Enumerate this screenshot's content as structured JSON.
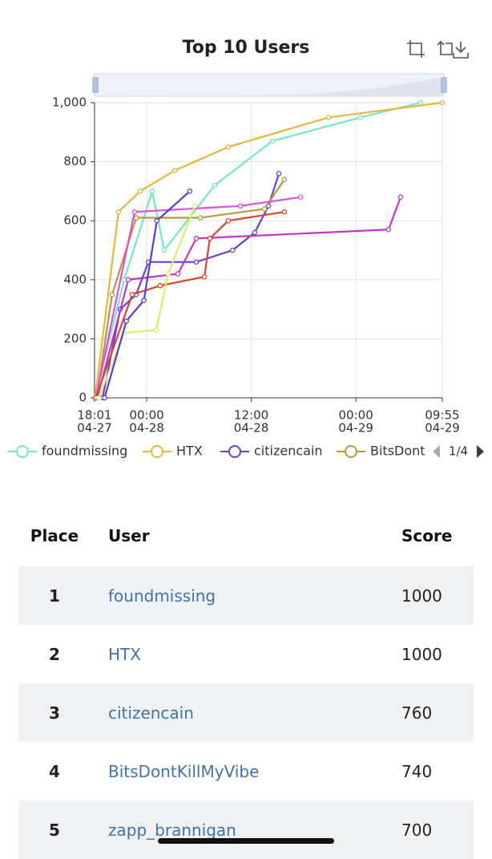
{
  "chart_data": {
    "type": "line",
    "title": "Top 10 Users",
    "xlim": [
      "04-27 18:01",
      "04-29 09:55"
    ],
    "xticks": [
      {
        "value": "04-27 18:01",
        "label": [
          "18:01",
          "04-27"
        ]
      },
      {
        "value": "04-28 00:00",
        "label": [
          "00:00",
          "04-28"
        ]
      },
      {
        "value": "04-28 12:00",
        "label": [
          "12:00",
          "04-28"
        ]
      },
      {
        "value": "04-29 00:00",
        "label": [
          "00:00",
          "04-29"
        ]
      },
      {
        "value": "04-29 09:55",
        "label": [
          "09:55",
          "04-29"
        ]
      }
    ],
    "ylim": [
      0,
      1000
    ],
    "yticks": [
      0,
      200,
      400,
      600,
      800,
      {
        "value": 1000,
        "label": "1,000"
      }
    ],
    "grid": true,
    "legend_page": "1/4",
    "series": [
      {
        "name": "foundmissing",
        "color": "#72e8c4",
        "x": [
          "04-27 18:05",
          "04-27 21:25",
          "04-28 00:38",
          "04-28 02:01",
          "04-28 07:48",
          "04-28 14:26",
          "04-29 00:32",
          "04-29 07:26"
        ],
        "values": [
          0,
          400,
          700,
          500,
          720,
          870,
          950,
          1000
        ]
      },
      {
        "name": "HTX",
        "color": "#e3b83c",
        "x": [
          "04-27 18:05",
          "04-27 20:46",
          "04-27 23:15",
          "04-28 03:13",
          "04-28 09:22",
          "04-28 20:52",
          "04-29 09:55"
        ],
        "values": [
          0,
          630,
          700,
          770,
          850,
          950,
          1000
        ]
      },
      {
        "name": "citizencain",
        "color": "#6a3fd6",
        "x": [
          "04-27 18:56",
          "04-27 20:58",
          "04-27 22:48",
          "04-28 00:11",
          "04-28 05:41",
          "04-28 09:51",
          "04-28 12:24",
          "04-28 13:58",
          "04-28 15:10"
        ],
        "values": [
          0,
          300,
          350,
          460,
          460,
          500,
          560,
          650,
          760
        ]
      },
      {
        "name": "BitsDont",
        "color": "#b59a3b",
        "x": [
          "04-27 18:15",
          "04-27 20:02",
          "04-27 22:48",
          "04-28 06:09",
          "04-28 13:31",
          "04-28 15:48"
        ],
        "values": [
          0,
          350,
          610,
          610,
          640,
          740
        ]
      },
      {
        "color": "#e04fd8",
        "x": [
          "04-27 18:10",
          "04-27 22:37",
          "04-28 10:45",
          "04-28 17:39"
        ],
        "values": [
          0,
          630,
          650,
          680
        ]
      },
      {
        "color": "#c235c8",
        "x": [
          "04-27 18:20",
          "04-27 21:53",
          "04-28 03:35",
          "04-28 05:41",
          "04-29 03:45",
          "04-29 05:08"
        ],
        "values": [
          0,
          400,
          420,
          540,
          570,
          680
        ]
      },
      {
        "color": "#d9452b",
        "x": [
          "04-27 18:10",
          "04-27 22:20",
          "04-28 01:33",
          "04-28 06:37",
          "04-28 07:15",
          "04-28 09:22",
          "04-28 15:48"
        ],
        "values": [
          0,
          350,
          380,
          410,
          540,
          600,
          630
        ]
      },
      {
        "color": "#d8ef6a",
        "x": [
          "04-27 18:30",
          "04-27 21:25",
          "04-28 01:06",
          "04-28 02:28",
          "04-28 05:31"
        ],
        "values": [
          0,
          220,
          230,
          420,
          650
        ]
      },
      {
        "color": "#5b3ad0",
        "x": [
          "04-27 19:10",
          "04-27 21:40",
          "04-27 23:40",
          "04-28 01:10",
          "04-28 04:57"
        ],
        "values": [
          0,
          260,
          330,
          600,
          700
        ]
      }
    ]
  },
  "table": {
    "header": [
      "Place",
      "User",
      "Score"
    ],
    "rows": [
      [
        "1",
        "foundmissing",
        "1000"
      ],
      [
        "2",
        "HTX",
        "1000"
      ],
      [
        "3",
        "citizencain",
        "760"
      ],
      [
        "4",
        "BitsDontKillMyVibe",
        "740"
      ],
      [
        "5",
        "zapp_brannigan",
        "700"
      ]
    ]
  }
}
